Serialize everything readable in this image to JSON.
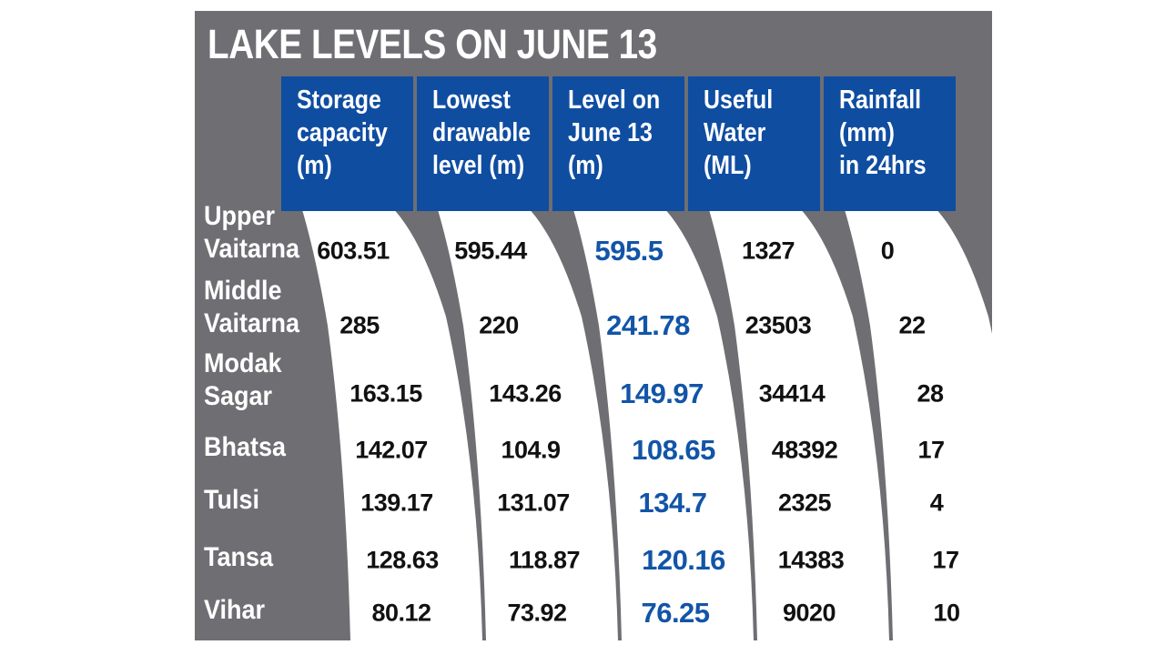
{
  "title": "LAKE LEVELS ON JUNE 13",
  "columns": [
    "Storage\ncapacity\n(m)",
    "Lowest\ndrawable\nlevel (m)",
    "Level on\nJune 13\n(m)",
    "Useful\nWater\n(ML)",
    "Rainfall\n(mm)\nin 24hrs"
  ],
  "rows": [
    {
      "lake": "Upper\nVaitarna",
      "values": [
        "603.51",
        "595.44",
        "595.5",
        "1327",
        "0"
      ]
    },
    {
      "lake": "Middle\nVaitarna",
      "values": [
        "285",
        "220",
        "241.78",
        "23503",
        "22"
      ]
    },
    {
      "lake": "Modak\nSagar",
      "values": [
        "163.15",
        "143.26",
        "149.97",
        "34414",
        "28"
      ]
    },
    {
      "lake": "Bhatsa",
      "values": [
        "142.07",
        "104.9",
        "108.65",
        "48392",
        "17"
      ]
    },
    {
      "lake": "Tulsi",
      "values": [
        "139.17",
        "131.07",
        "134.7",
        "2325",
        "4"
      ]
    },
    {
      "lake": "Tansa",
      "values": [
        "128.63",
        "118.87",
        "120.16",
        "14383",
        "17"
      ]
    },
    {
      "lake": "Vihar",
      "values": [
        "80.12",
        "73.92",
        "76.25",
        "9020",
        "10"
      ]
    }
  ],
  "colors": {
    "background": "#6e6e73",
    "header": "#0f4da1",
    "band": "#ffffff",
    "value": "#111111",
    "highlight": "#1255a7"
  }
}
